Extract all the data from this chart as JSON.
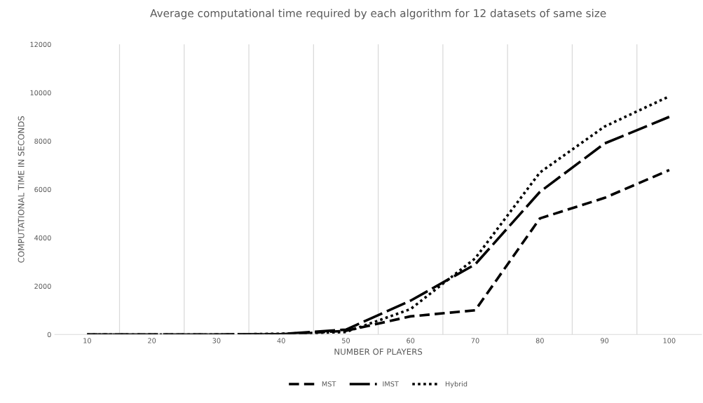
{
  "chart_data": {
    "type": "line",
    "title": "Average computational time required by each algorithm for 12 datasets of same size",
    "xlabel": "NUMBER OF PLAYERS",
    "ylabel": "COMPUTATIONAL TIME IN SECONDS",
    "categories": [
      "10",
      "20",
      "30",
      "40",
      "50",
      "60",
      "70",
      "80",
      "90",
      "100"
    ],
    "series": [
      {
        "name": "MST",
        "color": "#000000",
        "line_style": "dashed",
        "values": [
          0,
          0,
          0,
          10,
          150,
          750,
          1000,
          4800,
          5650,
          6800
        ]
      },
      {
        "name": "IMST",
        "color": "#000000",
        "line_style": "longdash",
        "values": [
          0,
          0,
          0,
          20,
          200,
          1400,
          2900,
          5900,
          7900,
          9000
        ]
      },
      {
        "name": "Hybrid",
        "color": "#000000",
        "line_style": "dotted",
        "values": [
          0,
          0,
          0,
          30,
          100,
          1050,
          3150,
          6700,
          8600,
          9850
        ]
      }
    ],
    "ylim": [
      0,
      12000
    ],
    "yticks": [
      0,
      2000,
      4000,
      6000,
      8000,
      10000,
      12000
    ],
    "grid": "x",
    "legend": "bottom",
    "marker": "none"
  }
}
